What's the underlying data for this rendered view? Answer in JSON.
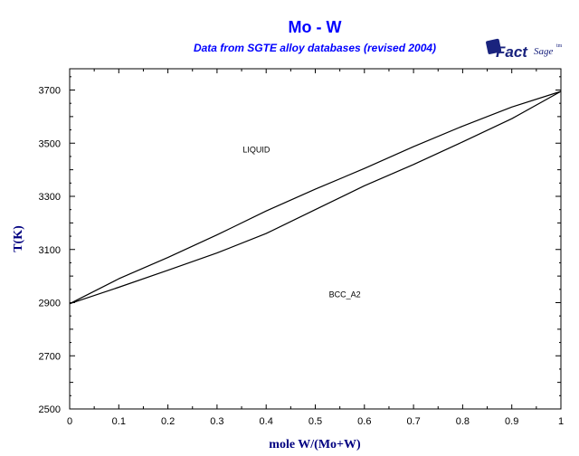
{
  "colors": {
    "title": "#0000ff",
    "axis_title": "#000080",
    "curves": "#000000",
    "logo": "#1a237e"
  },
  "logo": {
    "text_bold": "Fact",
    "text_script": "Sage",
    "mark": "tm",
    "icon": "factsage-logo"
  },
  "chart_data": {
    "type": "line",
    "title": "Mo - W",
    "subtitle": "Data from SGTE alloy databases (revised 2004)",
    "xlabel": "mole W/(Mo+W)",
    "ylabel": "T(K)",
    "xlim": [
      0,
      1
    ],
    "ylim": [
      2500,
      3780
    ],
    "x_ticks": [
      "0",
      "0.1",
      "0.2",
      "0.3",
      "0.4",
      "0.5",
      "0.6",
      "0.7",
      "0.8",
      "0.9",
      "1"
    ],
    "y_ticks": [
      "2500",
      "2700",
      "2900",
      "3100",
      "3300",
      "3500",
      "3700"
    ],
    "grid": false,
    "series": [
      {
        "x": [
          0,
          0.1,
          0.2,
          0.3,
          0.4,
          0.5,
          0.6,
          0.7,
          0.8,
          0.9,
          1
        ],
        "y": [
          2896,
          2990,
          3070,
          3155,
          3245,
          3327,
          3405,
          3487,
          3564,
          3636,
          3695
        ]
      },
      {
        "x": [
          0,
          0.1,
          0.2,
          0.3,
          0.4,
          0.5,
          0.6,
          0.7,
          0.8,
          0.9,
          1
        ],
        "y": [
          2896,
          2958,
          3022,
          3087,
          3160,
          3250,
          3340,
          3420,
          3505,
          3592,
          3695
        ]
      }
    ],
    "annotations": [
      {
        "text": "LIQUID",
        "x": 0.38,
        "y": 3465
      },
      {
        "text": "BCC_A2",
        "x": 0.56,
        "y": 2920
      }
    ]
  }
}
